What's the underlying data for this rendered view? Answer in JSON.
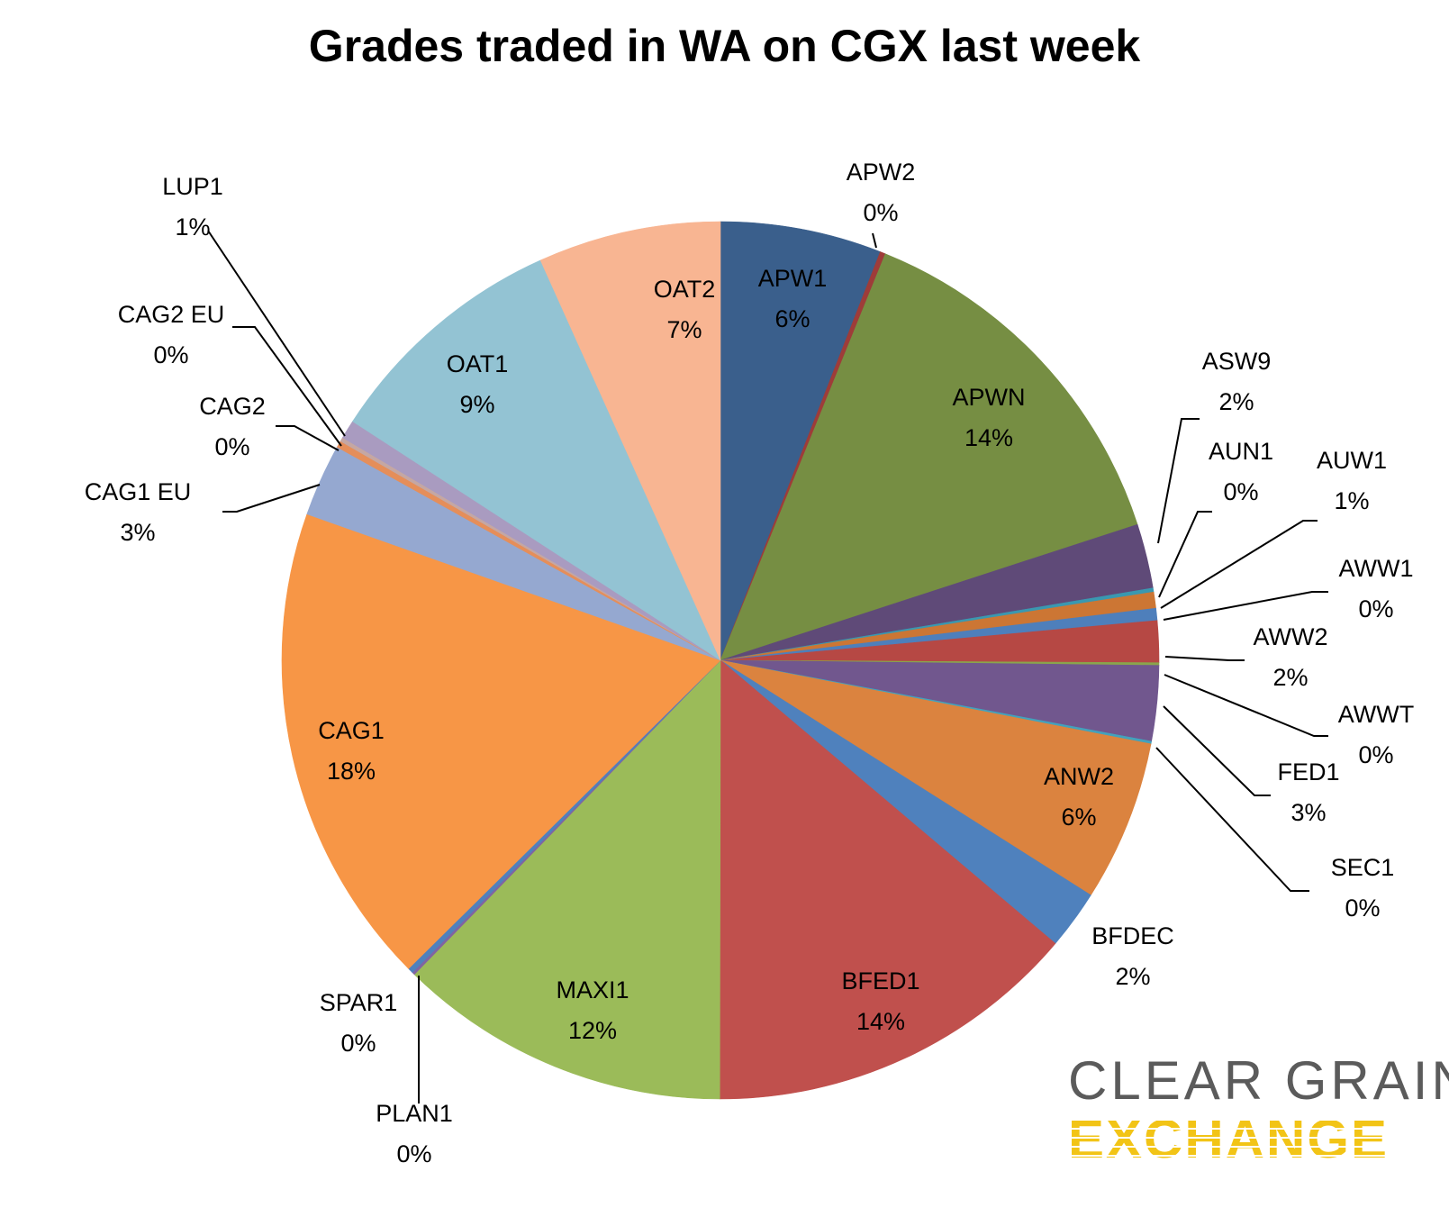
{
  "chart_data": {
    "type": "pie",
    "title": "Grades traded in WA on CGX last week",
    "start_angle_deg": 0,
    "direction": "clockwise",
    "slices": [
      {
        "name": "APW1",
        "value": 6,
        "value_label": "6%",
        "color": "#3a5f8c",
        "label_position": "inside"
      },
      {
        "name": "APW2",
        "value": 0.2,
        "value_label": "0%",
        "color": "#9e3c39",
        "label_position": "outside"
      },
      {
        "name": "APWN",
        "value": 14,
        "value_label": "14%",
        "color": "#768e43",
        "label_position": "inside"
      },
      {
        "name": "ASW9",
        "value": 2.4,
        "value_label": "2%",
        "color": "#5f4a78",
        "label_position": "outside"
      },
      {
        "name": "AUN1",
        "value": 0.15,
        "value_label": "0%",
        "color": "#3a98b0",
        "label_position": "outside"
      },
      {
        "name": "AUW1",
        "value": 0.6,
        "value_label": "1%",
        "color": "#cc7634",
        "label_position": "outside"
      },
      {
        "name": "AWW1",
        "value": 0.45,
        "value_label": "0%",
        "color": "#4e7fbb",
        "label_position": "outside"
      },
      {
        "name": "AWW2",
        "value": 1.55,
        "value_label": "2%",
        "color": "#b64844",
        "label_position": "outside"
      },
      {
        "name": "AWWT",
        "value": 0.1,
        "value_label": "0%",
        "color": "#8aa44c",
        "label_position": "outside"
      },
      {
        "name": "FED1",
        "value": 2.8,
        "value_label": "3%",
        "color": "#71578e",
        "label_position": "outside"
      },
      {
        "name": "SEC1",
        "value": 0.1,
        "value_label": "0%",
        "color": "#43a2bc",
        "label_position": "outside"
      },
      {
        "name": "ANW2",
        "value": 6,
        "value_label": "6%",
        "color": "#db833f",
        "label_position": "inside"
      },
      {
        "name": "BFDEC",
        "value": 2.2,
        "value_label": "2%",
        "color": "#4f81bd",
        "label_position": "outside"
      },
      {
        "name": "BFED1",
        "value": 14,
        "value_label": "14%",
        "color": "#c0504d",
        "label_position": "inside"
      },
      {
        "name": "MAXI1",
        "value": 12.4,
        "value_label": "12%",
        "color": "#9bbb59",
        "label_position": "inside"
      },
      {
        "name": "PLAN1",
        "value": 0.1,
        "value_label": "0%",
        "color": "#8064a2",
        "label_position": "outside"
      },
      {
        "name": "SPAR1",
        "value": 0.2,
        "value_label": "0%",
        "color": "#4f81bd",
        "label_position": "outside"
      },
      {
        "name": "CAG1",
        "value": 18,
        "value_label": "18%",
        "color": "#f79646",
        "label_position": "inside"
      },
      {
        "name": "CAG1 EU",
        "value": 2.7,
        "value_label": "3%",
        "color": "#95a8d0",
        "label_position": "outside"
      },
      {
        "name": "CAG2",
        "value": 0.25,
        "value_label": "0%",
        "color": "#e58e5a",
        "label_position": "outside"
      },
      {
        "name": "CAG2 EU",
        "value": 0.15,
        "value_label": "0%",
        "color": "#c5a7a3",
        "label_position": "outside"
      },
      {
        "name": "LUP1",
        "value": 0.7,
        "value_label": "1%",
        "color": "#a99bc0",
        "label_position": "outside"
      },
      {
        "name": "OAT1",
        "value": 9.2,
        "value_label": "9%",
        "color": "#93c3d3",
        "label_position": "inside"
      },
      {
        "name": "OAT2",
        "value": 6.8,
        "value_label": "7%",
        "color": "#f8b592",
        "label_position": "inside"
      }
    ]
  },
  "logo": {
    "line1": "CLEAR GRAIN",
    "line2": "EXCHANGE"
  }
}
